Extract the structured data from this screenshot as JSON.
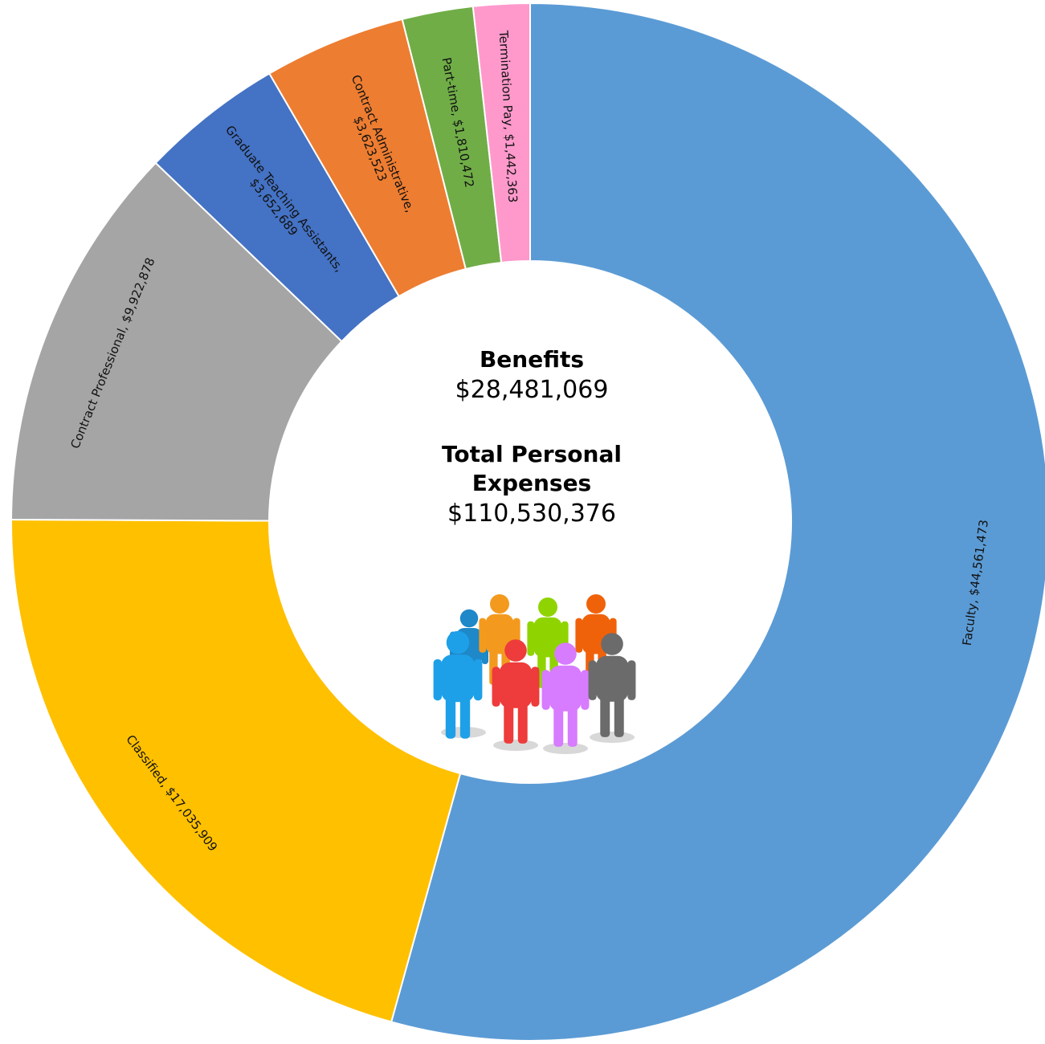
{
  "chart_data": {
    "type": "pie",
    "variant": "donut",
    "start_angle": "12 o'clock, clockwise",
    "slices": [
      {
        "name": "Faculty",
        "value": 44561473,
        "label": "Faculty,  $44,561,473",
        "color": "#5B9BD5"
      },
      {
        "name": "Classified",
        "value": 17035909,
        "label": "Classified,  $17,035,909",
        "color": "#FFC000"
      },
      {
        "name": "Contract Professional",
        "value": 9922878,
        "label": "Contract Professional,  $9,922,878",
        "color": "#A5A5A5"
      },
      {
        "name": "Graduate Teaching Assistants",
        "value": 3652689,
        "label_lines": [
          "Graduate Teaching Assistants,",
          "$3,652,689"
        ],
        "color": "#4472C4"
      },
      {
        "name": "Contract Administrative",
        "value": 3623523,
        "label_lines": [
          "Contract Administrative,",
          "$3,623,523"
        ],
        "color": "#ED7D31"
      },
      {
        "name": "Part-time",
        "value": 1810472,
        "label": "Part-time,  $1,810,472",
        "color": "#70AD47"
      },
      {
        "name": "Termination Pay",
        "value": 1442363,
        "label": "Termination Pay,  $1,442,363",
        "color": "#FF99CC"
      }
    ]
  },
  "center": {
    "benefits_title": "Benefits",
    "benefits_value": "$28,481,069",
    "total_title_line1": "Total Personal",
    "total_title_line2": "Expenses",
    "total_value": "$110,530,376"
  },
  "people_icon": {
    "name": "people-group-icon",
    "colors": [
      "#1E88C8",
      "#F39A1E",
      "#8FD400",
      "#F0620A",
      "#1EA0E8",
      "#EE3B3B",
      "#D77BFF",
      "#6B6B6B"
    ]
  }
}
